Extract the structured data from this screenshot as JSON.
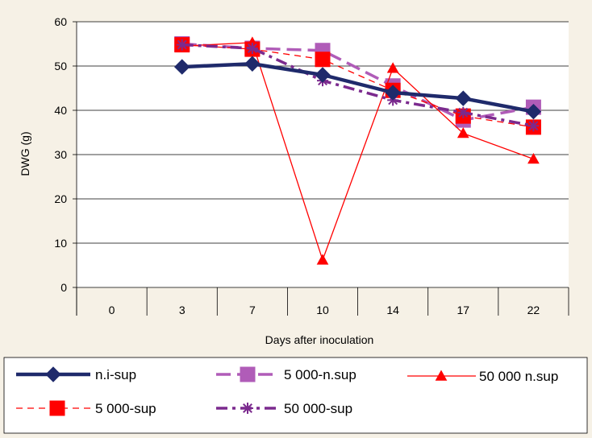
{
  "chart_data": {
    "type": "line",
    "ylabel": "DWG (g)",
    "xlabel": "Days after inoculation",
    "ylim": [
      0,
      60
    ],
    "yticks": [
      0,
      10,
      20,
      30,
      40,
      50,
      60
    ],
    "categories": [
      "0",
      "3",
      "7",
      "10",
      "14",
      "17",
      "22"
    ],
    "grid": "horizontal",
    "legend_position": "bottom",
    "series": [
      {
        "name": "n.i-sup",
        "values": [
          null,
          49.8,
          50.5,
          48.0,
          44.0,
          42.7,
          39.7
        ],
        "color": "#1f2a6b",
        "marker": "diamond",
        "dash": "solid"
      },
      {
        "name": "5 000-n.sup",
        "values": [
          null,
          55.0,
          54.0,
          53.5,
          45.5,
          37.8,
          40.7
        ],
        "color": "#b05cb8",
        "marker": "square",
        "dash": "longdash"
      },
      {
        "name": "50 000 n.sup",
        "values": [
          null,
          54.5,
          55.3,
          6.2,
          49.5,
          34.8,
          29.0
        ],
        "color": "#ff0000",
        "marker": "triangle",
        "dash": "solid"
      },
      {
        "name": "5 000-sup",
        "values": [
          null,
          54.8,
          53.8,
          51.5,
          44.5,
          38.7,
          36.2
        ],
        "color": "#ff0000",
        "marker": "square",
        "dash": "dash"
      },
      {
        "name": "50 000-sup",
        "values": [
          null,
          54.8,
          54.0,
          46.7,
          42.3,
          39.5,
          36.5
        ],
        "color": "#7b2a8e",
        "marker": "asterisk",
        "dash": "dashdot"
      }
    ]
  }
}
